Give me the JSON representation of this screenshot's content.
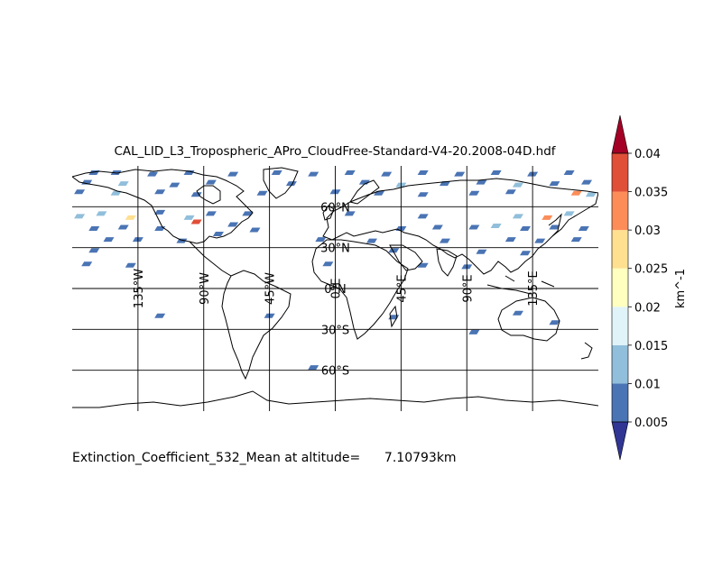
{
  "title": "CAL_LID_L3_Tropospheric_APro_CloudFree-Standard-V4-20.2008-04D.hdf",
  "caption": "Extinction_Coefficient_532_Mean at altitude=      7.10793km",
  "colorbar": {
    "label": "km^-1",
    "tick_labels": [
      "0.005",
      "0.01",
      "0.015",
      "0.02",
      "0.025",
      "0.03",
      "0.035",
      "0.04"
    ],
    "levels": [
      0.005,
      0.01,
      0.015,
      0.02,
      0.025,
      0.03,
      0.035,
      0.04
    ],
    "colors": [
      "#4a74b4",
      "#91bfdb",
      "#e0f3f8",
      "#ffffbf",
      "#fee090",
      "#fc8d59",
      "#e04f38"
    ],
    "under_color": "#313695",
    "over_color": "#a50026"
  },
  "map": {
    "projection": "equirectangular",
    "lon_range": [
      -180,
      180
    ],
    "lat_range": [
      -90,
      90
    ],
    "graticule_lon": [
      -135,
      -90,
      -45,
      0,
      45,
      90,
      135
    ],
    "graticule_lat": [
      -60,
      -30,
      0,
      30,
      60
    ],
    "lon_labels": [
      "135°W",
      "90°W",
      "45°W",
      "0°E",
      "45°E",
      "90°E",
      "135°E"
    ],
    "lat_labels": [
      "60°S",
      "30°S",
      "0°N",
      "30°N",
      "60°N"
    ],
    "land_color": "#ffffff",
    "coastline_color": "#000000"
  },
  "cells": [
    {
      "lon": -165,
      "lat": 85,
      "v": 0.007
    },
    {
      "lon": -150,
      "lat": 85,
      "v": 0.006
    },
    {
      "lon": -125,
      "lat": 84,
      "v": 0.007
    },
    {
      "lon": -100,
      "lat": 85,
      "v": 0.006
    },
    {
      "lon": -70,
      "lat": 84,
      "v": 0.007
    },
    {
      "lon": -40,
      "lat": 85,
      "v": 0.006
    },
    {
      "lon": -15,
      "lat": 84,
      "v": 0.007
    },
    {
      "lon": 10,
      "lat": 85,
      "v": 0.006
    },
    {
      "lon": 35,
      "lat": 84,
      "v": 0.007
    },
    {
      "lon": 60,
      "lat": 85,
      "v": 0.006
    },
    {
      "lon": 85,
      "lat": 84,
      "v": 0.007
    },
    {
      "lon": 110,
      "lat": 85,
      "v": 0.006
    },
    {
      "lon": 135,
      "lat": 84,
      "v": 0.007
    },
    {
      "lon": 160,
      "lat": 85,
      "v": 0.006
    },
    {
      "lon": -170,
      "lat": 78,
      "v": 0.006
    },
    {
      "lon": -145,
      "lat": 77,
      "v": 0.012
    },
    {
      "lon": -110,
      "lat": 76,
      "v": 0.007
    },
    {
      "lon": -85,
      "lat": 78,
      "v": 0.006
    },
    {
      "lon": -30,
      "lat": 77,
      "v": 0.007
    },
    {
      "lon": 20,
      "lat": 78,
      "v": 0.006
    },
    {
      "lon": 45,
      "lat": 76,
      "v": 0.011
    },
    {
      "lon": 75,
      "lat": 77,
      "v": 0.006
    },
    {
      "lon": 100,
      "lat": 78,
      "v": 0.007
    },
    {
      "lon": 125,
      "lat": 76,
      "v": 0.013
    },
    {
      "lon": 150,
      "lat": 77,
      "v": 0.007
    },
    {
      "lon": 172,
      "lat": 78,
      "v": 0.006
    },
    {
      "lon": -175,
      "lat": 71,
      "v": 0.006
    },
    {
      "lon": -150,
      "lat": 70,
      "v": 0.011
    },
    {
      "lon": -120,
      "lat": 71,
      "v": 0.006
    },
    {
      "lon": -95,
      "lat": 69,
      "v": 0.007
    },
    {
      "lon": -50,
      "lat": 70,
      "v": 0.006
    },
    {
      "lon": 0,
      "lat": 71,
      "v": 0.007
    },
    {
      "lon": 30,
      "lat": 70,
      "v": 0.006
    },
    {
      "lon": 60,
      "lat": 69,
      "v": 0.007
    },
    {
      "lon": 95,
      "lat": 70,
      "v": 0.006
    },
    {
      "lon": 120,
      "lat": 71,
      "v": 0.007
    },
    {
      "lon": 165,
      "lat": 70,
      "v": 0.032
    },
    {
      "lon": 175,
      "lat": 69,
      "v": 0.012
    },
    {
      "lon": -160,
      "lat": 55,
      "v": 0.014
    },
    {
      "lon": -140,
      "lat": 52,
      "v": 0.028
    },
    {
      "lon": -120,
      "lat": 56,
      "v": 0.007
    },
    {
      "lon": -100,
      "lat": 52,
      "v": 0.011
    },
    {
      "lon": -85,
      "lat": 55,
      "v": 0.006
    },
    {
      "lon": -70,
      "lat": 47,
      "v": 0.007
    },
    {
      "lon": -60,
      "lat": 55,
      "v": 0.007
    },
    {
      "lon": 10,
      "lat": 55,
      "v": 0.006
    },
    {
      "lon": 60,
      "lat": 53,
      "v": 0.006
    },
    {
      "lon": 125,
      "lat": 53,
      "v": 0.013
    },
    {
      "lon": 145,
      "lat": 52,
      "v": 0.034
    },
    {
      "lon": 160,
      "lat": 55,
      "v": 0.011
    },
    {
      "lon": -175,
      "lat": 53,
      "v": 0.012
    },
    {
      "lon": -165,
      "lat": 44,
      "v": 0.006
    },
    {
      "lon": -145,
      "lat": 45,
      "v": 0.006
    },
    {
      "lon": -120,
      "lat": 44,
      "v": 0.007
    },
    {
      "lon": -95,
      "lat": 49,
      "v": 0.038
    },
    {
      "lon": -80,
      "lat": 40,
      "v": 0.006
    },
    {
      "lon": -55,
      "lat": 43,
      "v": 0.007
    },
    {
      "lon": 45,
      "lat": 44,
      "v": 0.007
    },
    {
      "lon": 70,
      "lat": 45,
      "v": 0.006
    },
    {
      "lon": 95,
      "lat": 45,
      "v": 0.007
    },
    {
      "lon": 110,
      "lat": 46,
      "v": 0.012
    },
    {
      "lon": 130,
      "lat": 44,
      "v": 0.007
    },
    {
      "lon": 150,
      "lat": 45,
      "v": 0.006
    },
    {
      "lon": 170,
      "lat": 44,
      "v": 0.007
    },
    {
      "lon": -155,
      "lat": 36,
      "v": 0.006
    },
    {
      "lon": -135,
      "lat": 36,
      "v": 0.007
    },
    {
      "lon": -105,
      "lat": 35,
      "v": 0.006
    },
    {
      "lon": -10,
      "lat": 36,
      "v": 0.006
    },
    {
      "lon": 25,
      "lat": 35,
      "v": 0.006
    },
    {
      "lon": 75,
      "lat": 35,
      "v": 0.006
    },
    {
      "lon": 120,
      "lat": 36,
      "v": 0.007
    },
    {
      "lon": 140,
      "lat": 35,
      "v": 0.006
    },
    {
      "lon": 165,
      "lat": 36,
      "v": 0.007
    },
    {
      "lon": -165,
      "lat": 28,
      "v": 0.006
    },
    {
      "lon": 40,
      "lat": 28,
      "v": 0.006
    },
    {
      "lon": 100,
      "lat": 27,
      "v": 0.006
    },
    {
      "lon": 130,
      "lat": 26,
      "v": 0.006
    },
    {
      "lon": -170,
      "lat": 18,
      "v": 0.006
    },
    {
      "lon": -140,
      "lat": 17,
      "v": 0.006
    },
    {
      "lon": -5,
      "lat": 18,
      "v": 0.006
    },
    {
      "lon": 60,
      "lat": 17,
      "v": 0.006
    },
    {
      "lon": 90,
      "lat": 16,
      "v": 0.006
    },
    {
      "lon": -120,
      "lat": -20,
      "v": 0.006
    },
    {
      "lon": -45,
      "lat": -20,
      "v": 0.006
    },
    {
      "lon": 40,
      "lat": -21,
      "v": 0.006
    },
    {
      "lon": 125,
      "lat": -18,
      "v": 0.006
    },
    {
      "lon": 150,
      "lat": -25,
      "v": 0.006
    },
    {
      "lon": 95,
      "lat": -32,
      "v": 0.006
    },
    {
      "lon": -15,
      "lat": -58,
      "v": 0.006
    }
  ]
}
